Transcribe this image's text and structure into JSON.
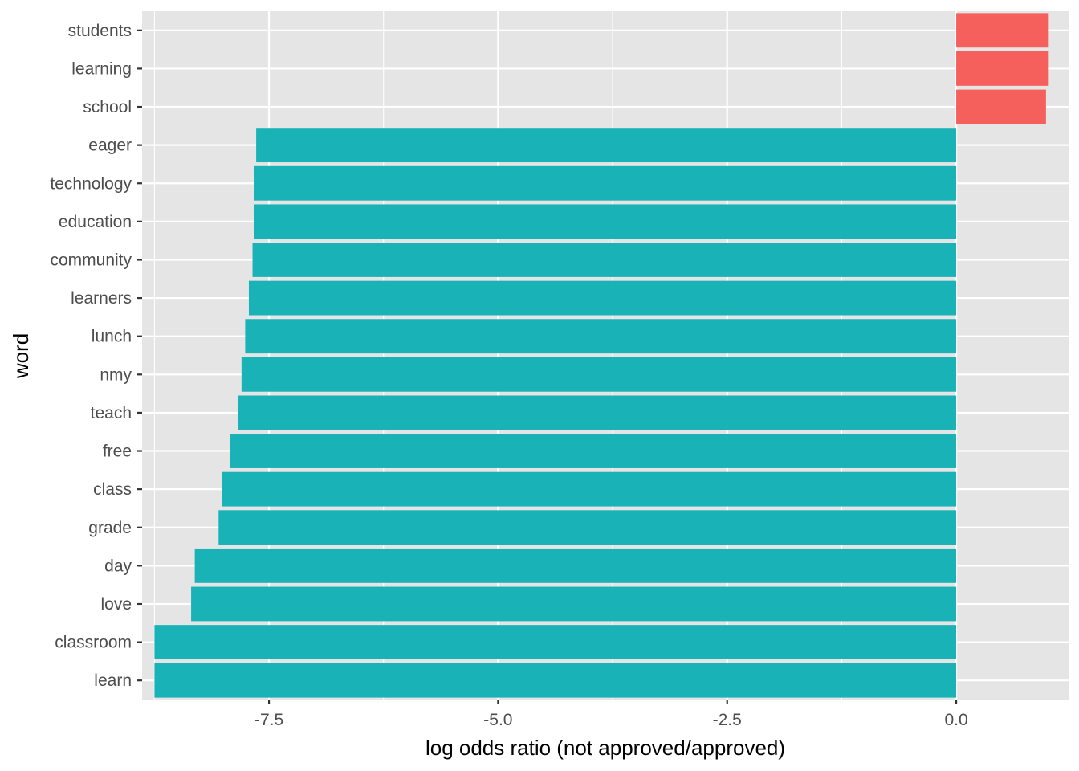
{
  "chart_data": {
    "type": "bar",
    "orientation": "horizontal",
    "title": "",
    "xlabel": "log odds ratio (not approved/approved)",
    "ylabel": "word",
    "xlim": [
      -8.885,
      1.235
    ],
    "x_ticks": [
      -7.5,
      -5.0,
      -2.5,
      0.0
    ],
    "x_tick_labels": [
      "-7.5",
      "-5.0",
      "-2.5",
      "0.0"
    ],
    "grid": true,
    "legend": "none",
    "categories": [
      "learn",
      "classroom",
      "love",
      "day",
      "grade",
      "class",
      "free",
      "teach",
      "nmy",
      "lunch",
      "learners",
      "community",
      "education",
      "technology",
      "eager",
      "school",
      "learning",
      "students"
    ],
    "values": [
      -8.75,
      -8.75,
      -8.35,
      -8.31,
      -8.05,
      -8.01,
      -7.93,
      -7.84,
      -7.8,
      -7.76,
      -7.72,
      -7.68,
      -7.66,
      -7.66,
      -7.64,
      0.98,
      1.01,
      1.01
    ],
    "colors": {
      "negative": "#19b2b7",
      "positive": "#f5605d"
    },
    "panel_background": "#e5e5e5",
    "grid_color": "#ffffff"
  }
}
